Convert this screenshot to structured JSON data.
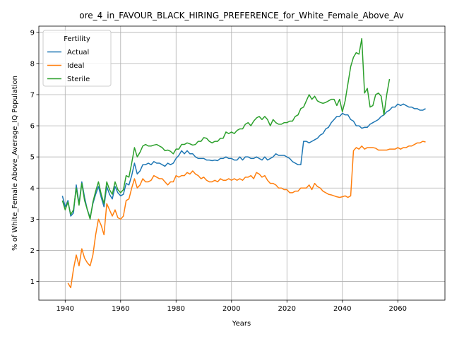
{
  "chart_data": {
    "type": "line",
    "title": "ore_4_in_FAVOUR_BLACK_HIRING_PREFERENCE_for_White_Female_Above_Av",
    "xlabel": "Years",
    "ylabel": "% of White_Female Above_Average_IQ Population",
    "legend_title": "Fertility",
    "legend_loc": "upper left",
    "grid": true,
    "xlim": [
      1930.5,
      2077
    ],
    "ylim": [
      0.4,
      9.2
    ],
    "xticks": [
      1940,
      1960,
      1980,
      2000,
      2020,
      2040,
      2060
    ],
    "yticks": [
      1,
      2,
      3,
      4,
      5,
      6,
      7,
      8,
      9
    ],
    "x": [
      1939,
      1940,
      1941,
      1942,
      1943,
      1944,
      1945,
      1946,
      1947,
      1948,
      1949,
      1950,
      1951,
      1952,
      1953,
      1954,
      1955,
      1956,
      1957,
      1958,
      1959,
      1960,
      1961,
      1962,
      1963,
      1964,
      1965,
      1966,
      1967,
      1968,
      1969,
      1970,
      1971,
      1972,
      1973,
      1974,
      1975,
      1976,
      1977,
      1978,
      1979,
      1980,
      1981,
      1982,
      1983,
      1984,
      1985,
      1986,
      1987,
      1988,
      1989,
      1990,
      1991,
      1992,
      1993,
      1994,
      1995,
      1996,
      1997,
      1998,
      1999,
      2000,
      2001,
      2002,
      2003,
      2004,
      2005,
      2006,
      2007,
      2008,
      2009,
      2010,
      2011,
      2012,
      2013,
      2014,
      2015,
      2016,
      2017,
      2018,
      2019,
      2020,
      2021,
      2022,
      2023,
      2024,
      2025,
      2026,
      2027,
      2028,
      2029,
      2030,
      2031,
      2032,
      2033,
      2034,
      2035,
      2036,
      2037,
      2038,
      2039,
      2040,
      2041,
      2042,
      2043,
      2044,
      2045,
      2046,
      2047,
      2048,
      2049,
      2050,
      2051,
      2052,
      2053,
      2054,
      2055,
      2056,
      2057,
      2058,
      2059,
      2060,
      2061,
      2062,
      2063,
      2064,
      2065,
      2066,
      2067,
      2068,
      2069,
      2070
    ],
    "series": [
      {
        "name": "Actual",
        "color": "#1f77b4",
        "values": [
          3.75,
          3.4,
          3.6,
          3.1,
          3.2,
          4.1,
          3.5,
          4.2,
          3.7,
          3.3,
          3.05,
          3.5,
          3.8,
          4.05,
          3.7,
          3.4,
          4.05,
          3.8,
          3.65,
          4.05,
          3.85,
          3.75,
          3.8,
          4.15,
          4.1,
          4.4,
          4.8,
          4.45,
          4.55,
          4.75,
          4.75,
          4.8,
          4.75,
          4.85,
          4.8,
          4.8,
          4.75,
          4.7,
          4.8,
          4.75,
          4.8,
          4.95,
          5.05,
          5.2,
          5.1,
          5.2,
          5.1,
          5.1,
          5.0,
          4.95,
          4.95,
          4.95,
          4.9,
          4.9,
          4.88,
          4.9,
          4.88,
          4.95,
          4.95,
          5.0,
          4.95,
          4.95,
          4.9,
          4.9,
          5.0,
          4.9,
          5.0,
          5.0,
          4.95,
          4.95,
          5.0,
          4.95,
          4.9,
          5.0,
          4.9,
          4.95,
          5.0,
          5.1,
          5.05,
          5.05,
          5.05,
          5.0,
          4.95,
          4.85,
          4.8,
          4.75,
          4.75,
          5.5,
          5.5,
          5.45,
          5.5,
          5.55,
          5.6,
          5.7,
          5.75,
          5.9,
          5.95,
          6.1,
          6.2,
          6.3,
          6.3,
          6.4,
          6.35,
          6.35,
          6.2,
          6.15,
          6.0,
          6.0,
          5.92,
          5.95,
          5.95,
          6.05,
          6.1,
          6.15,
          6.2,
          6.3,
          6.35,
          6.45,
          6.5,
          6.6,
          6.6,
          6.7,
          6.65,
          6.7,
          6.65,
          6.6,
          6.6,
          6.55,
          6.55,
          6.5,
          6.5,
          6.55
        ]
      },
      {
        "name": "Ideal",
        "color": "#ff7f0e",
        "values": [
          null,
          null,
          0.95,
          0.8,
          1.4,
          1.85,
          1.5,
          2.05,
          1.75,
          1.6,
          1.5,
          1.85,
          2.5,
          3.0,
          2.8,
          2.5,
          3.5,
          3.3,
          3.1,
          3.3,
          3.05,
          3.0,
          3.1,
          3.6,
          3.65,
          4.0,
          4.3,
          4.0,
          4.1,
          4.3,
          4.2,
          4.2,
          4.25,
          4.4,
          4.35,
          4.3,
          4.3,
          4.2,
          4.1,
          4.2,
          4.2,
          4.4,
          4.35,
          4.4,
          4.4,
          4.5,
          4.45,
          4.55,
          4.45,
          4.4,
          4.3,
          4.35,
          4.25,
          4.2,
          4.2,
          4.25,
          4.2,
          4.3,
          4.25,
          4.25,
          4.3,
          4.25,
          4.3,
          4.25,
          4.3,
          4.25,
          4.35,
          4.35,
          4.4,
          4.3,
          4.5,
          4.45,
          4.35,
          4.4,
          4.25,
          4.15,
          4.15,
          4.1,
          4.0,
          4.0,
          3.95,
          3.95,
          3.85,
          3.85,
          3.9,
          3.9,
          4.0,
          4.0,
          4.0,
          4.1,
          3.95,
          4.15,
          4.05,
          4.0,
          3.9,
          3.85,
          3.8,
          3.78,
          3.75,
          3.72,
          3.7,
          3.72,
          3.75,
          3.7,
          3.75,
          5.2,
          5.3,
          5.25,
          5.35,
          5.25,
          5.3,
          5.3,
          5.3,
          5.28,
          5.22,
          5.22,
          5.22,
          5.22,
          5.25,
          5.25,
          5.25,
          5.3,
          5.25,
          5.3,
          5.3,
          5.35,
          5.35,
          5.4,
          5.45,
          5.45,
          5.5,
          5.48
        ]
      },
      {
        "name": "Sterile",
        "color": "#2ca02c",
        "values": [
          3.6,
          3.3,
          3.55,
          3.15,
          3.3,
          4.0,
          3.45,
          4.15,
          3.6,
          3.3,
          3.0,
          3.55,
          3.9,
          4.2,
          3.8,
          3.5,
          4.2,
          3.95,
          3.8,
          4.2,
          3.95,
          3.85,
          3.95,
          4.4,
          4.35,
          4.8,
          5.3,
          5.0,
          5.15,
          5.35,
          5.4,
          5.35,
          5.35,
          5.38,
          5.4,
          5.35,
          5.3,
          5.2,
          5.22,
          5.18,
          5.1,
          5.25,
          5.25,
          5.4,
          5.4,
          5.45,
          5.42,
          5.38,
          5.4,
          5.5,
          5.5,
          5.62,
          5.6,
          5.5,
          5.45,
          5.5,
          5.5,
          5.6,
          5.6,
          5.8,
          5.75,
          5.8,
          5.75,
          5.85,
          5.9,
          5.9,
          6.05,
          6.1,
          6.0,
          6.15,
          6.25,
          6.3,
          6.2,
          6.3,
          6.2,
          6.0,
          6.2,
          6.1,
          6.05,
          6.05,
          6.1,
          6.1,
          6.15,
          6.15,
          6.3,
          6.35,
          6.55,
          6.6,
          6.8,
          7.0,
          6.85,
          6.95,
          6.8,
          6.75,
          6.72,
          6.75,
          6.8,
          6.85,
          6.85,
          6.65,
          6.85,
          6.45,
          6.8,
          7.35,
          7.9,
          8.2,
          8.35,
          8.3,
          8.8,
          7.05,
          7.2,
          6.6,
          6.65,
          7.0,
          7.05,
          6.95,
          6.35,
          7.0,
          7.5,
          null,
          null,
          null,
          null,
          null,
          null,
          null,
          null,
          null,
          null,
          null,
          null,
          null
        ]
      }
    ]
  }
}
